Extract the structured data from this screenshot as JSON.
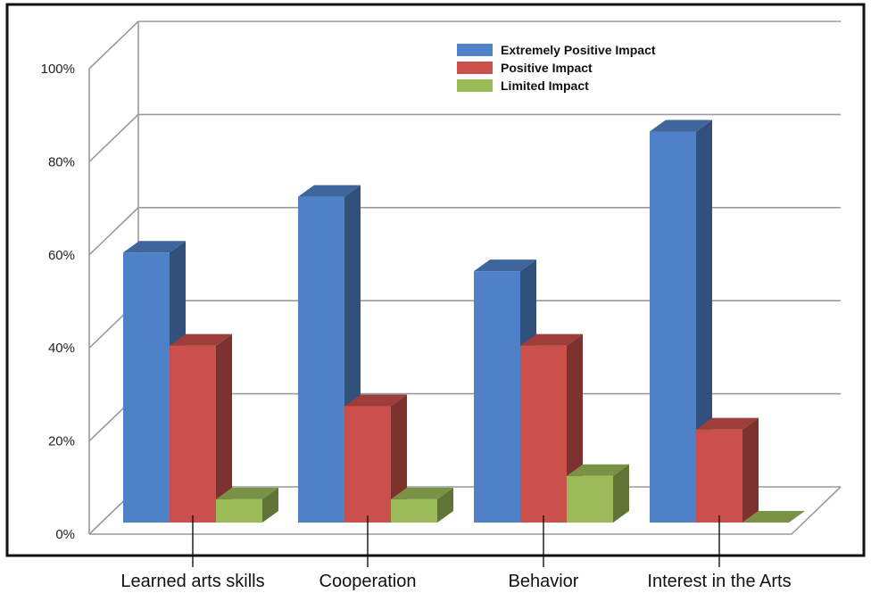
{
  "chart_data": {
    "type": "bar",
    "categories": [
      "Learned arts skills",
      "Cooperation",
      "Behavior",
      "Interest in the Arts"
    ],
    "series": [
      {
        "name": "Extremely Positive Impact",
        "values": [
          58,
          70,
          54,
          84
        ],
        "color": "#4F81C8"
      },
      {
        "name": "Positive Impact",
        "values": [
          38,
          25,
          38,
          20
        ],
        "color": "#C9504B"
      },
      {
        "name": "Limited Impact",
        "values": [
          5,
          5,
          10,
          0
        ],
        "color": "#9BBB59"
      }
    ],
    "yticks": [
      "0%",
      "20%",
      "40%",
      "60%",
      "80%",
      "100%"
    ],
    "ylim": [
      0,
      100
    ],
    "legend_position": "top-right",
    "grid": true,
    "style": "3d"
  }
}
